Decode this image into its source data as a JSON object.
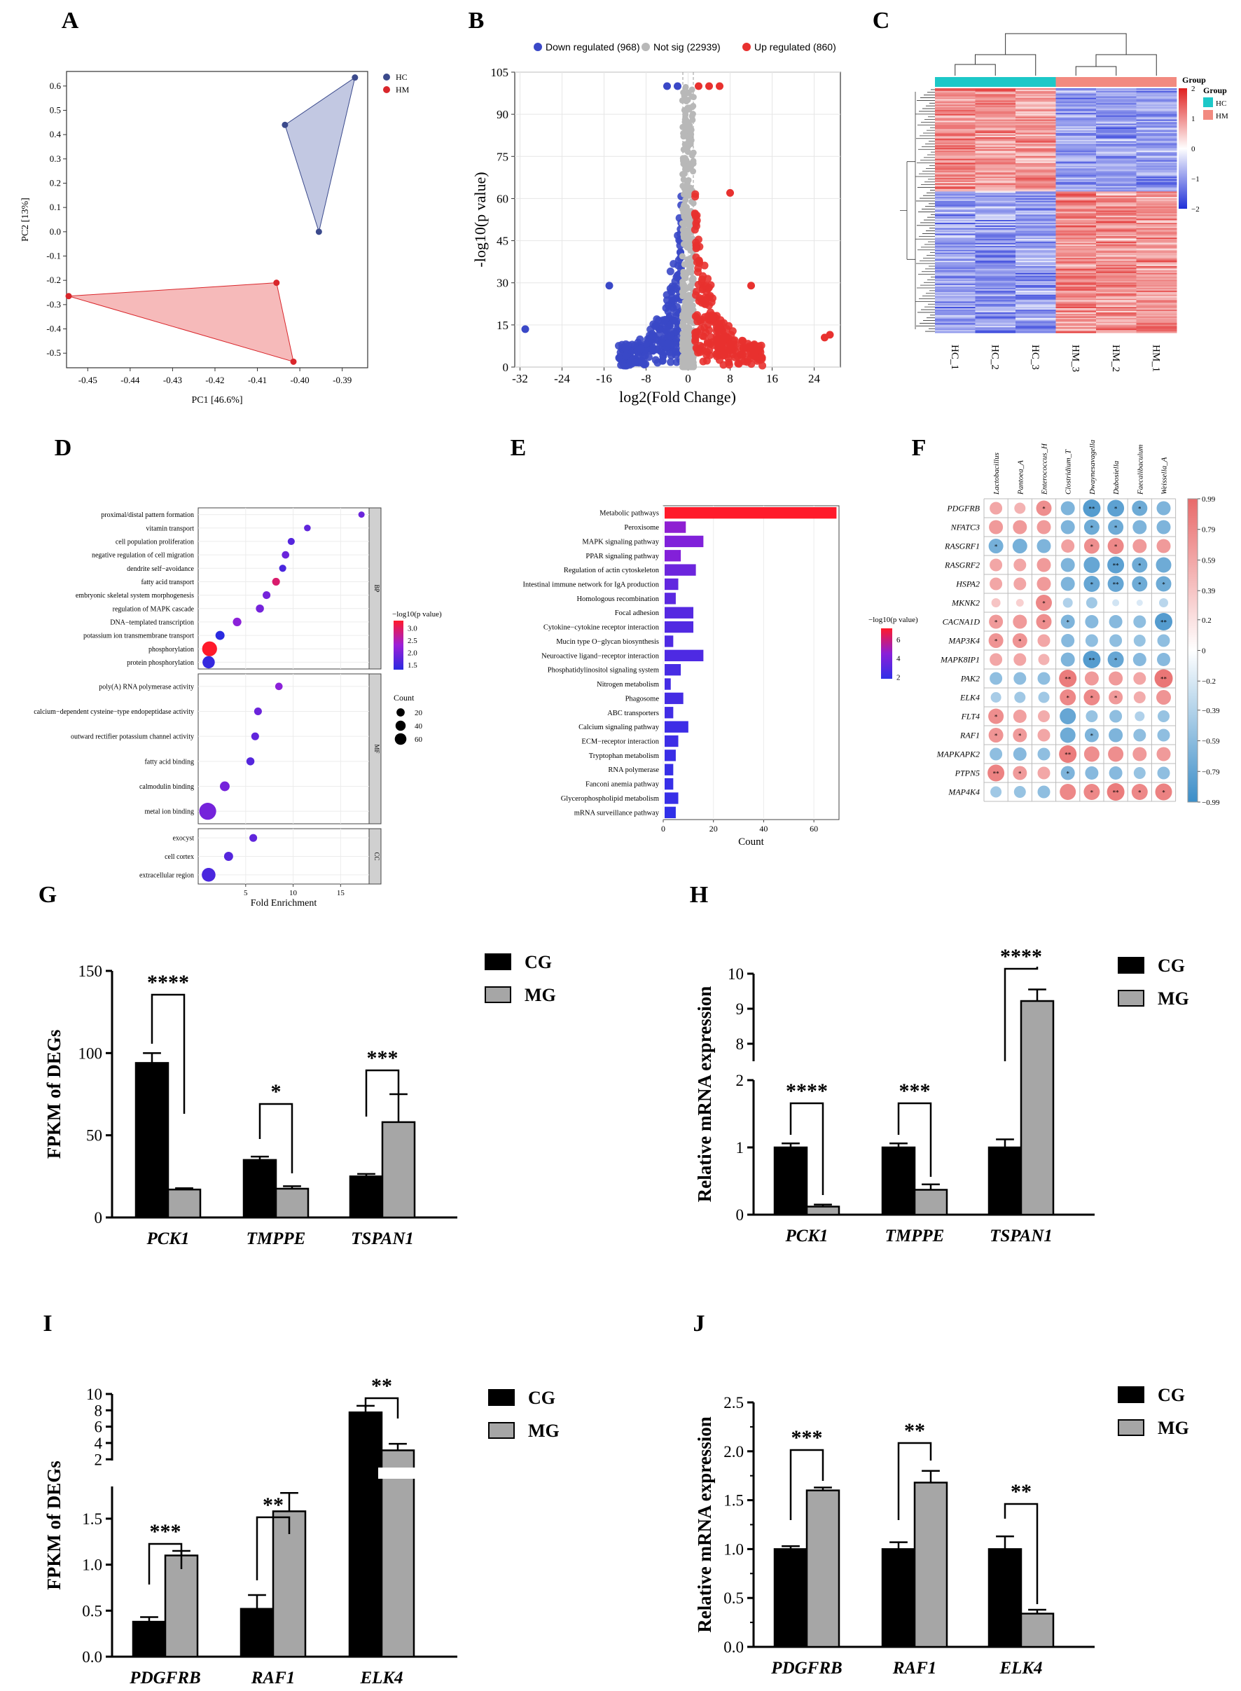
{
  "figure": {
    "panel_letters": [
      "A",
      "B",
      "C",
      "D",
      "E",
      "F",
      "G",
      "H",
      "I",
      "J"
    ]
  },
  "chart_data": [
    {
      "panel": "A",
      "type": "scatter",
      "xlabel": "PC1 [46.6%]",
      "ylabel": "PC2 [13%]",
      "xlim": [
        -0.455,
        -0.384
      ],
      "ylim": [
        -0.56,
        0.66
      ],
      "xticks": [
        "-0.45",
        "-0.44",
        "-0.43",
        "-0.42",
        "-0.41",
        "-0.40",
        "-0.39"
      ],
      "xtick_values": [
        -0.45,
        -0.44,
        -0.43,
        -0.42,
        -0.41,
        -0.4,
        -0.39
      ],
      "yticks": [
        "0.6",
        "0.5",
        "0.4",
        "0.3",
        "0.2",
        "0.1",
        "0.0",
        "-0.1",
        "-0.2",
        "-0.3",
        "-0.4",
        "-0.5"
      ],
      "ytick_values": [
        0.6,
        0.5,
        0.4,
        0.3,
        0.2,
        0.1,
        0.0,
        -0.1,
        -0.2,
        -0.3,
        -0.4,
        -0.5
      ],
      "legend": [
        {
          "name": "HC",
          "color": "#3b4a8c"
        },
        {
          "name": "HM",
          "color": "#d9262b"
        }
      ],
      "series": [
        {
          "name": "HC",
          "color": "#3b4a8c",
          "fill": "#aeb6d8",
          "points": [
            [
              -0.387,
              0.635
            ],
            [
              -0.4035,
              0.44
            ],
            [
              -0.3955,
              0.0
            ]
          ]
        },
        {
          "name": "HM",
          "color": "#d9262b",
          "fill": "#f3a3a3",
          "points": [
            [
              -0.4545,
              -0.265
            ],
            [
              -0.4055,
              -0.21
            ],
            [
              -0.4015,
              -0.535
            ]
          ]
        }
      ]
    },
    {
      "panel": "B",
      "type": "scatter",
      "title": "",
      "xlabel": "log2(Fold Change)",
      "ylabel": "-log10(p value)",
      "xlim": [
        -33,
        29
      ],
      "ylim": [
        0,
        105
      ],
      "xticks": [
        "-32",
        "-24",
        "-16",
        "-8",
        "0",
        "8",
        "16",
        "24"
      ],
      "xtick_values": [
        -32,
        -24,
        -16,
        -8,
        0,
        8,
        16,
        24
      ],
      "yticks": [
        "0",
        "15",
        "30",
        "45",
        "60",
        "75",
        "90",
        "105"
      ],
      "ytick_values": [
        0,
        15,
        30,
        45,
        60,
        75,
        90,
        105
      ],
      "legend": [
        {
          "name": "Down regulated (968)",
          "color": "#3a48c7"
        },
        {
          "name": "Not sig (22939)",
          "color": "#b8b8b8"
        },
        {
          "name": "Up regulated (860)",
          "color": "#e8312f"
        }
      ],
      "series_counts": {
        "down": 968,
        "not_sig": 22939,
        "up": 860
      }
    },
    {
      "panel": "C",
      "type": "heatmap",
      "columns": [
        "HC_1",
        "HC_2",
        "HC_3",
        "HM_3",
        "HM_2",
        "HM_1"
      ],
      "groups": [
        {
          "name": "HC",
          "color": "#1dc8c8"
        },
        {
          "name": "HM",
          "color": "#f28a80"
        }
      ],
      "legend_title": "Group",
      "scale_ticks": [
        "2",
        "1",
        "0",
        "−1",
        "−2"
      ],
      "scale_values": [
        2,
        1,
        0,
        -1,
        -2
      ],
      "scale_colors": [
        "#e0201f",
        "#ffffff",
        "#1f2fd8"
      ]
    },
    {
      "panel": "D",
      "type": "scatter",
      "xlabel": "Fold Enrichment",
      "xlim": [
        0,
        18
      ],
      "xticks": [
        "5",
        "10",
        "15"
      ],
      "xtick_values": [
        5,
        10,
        15
      ],
      "colorbar_title": "−log10(p value)",
      "colorbar_ticks": [
        "3.0",
        "2.5",
        "2.0",
        "1.5"
      ],
      "colorbar_values": [
        3.0,
        2.5,
        2.0,
        1.5
      ],
      "size_legend_title": "Count",
      "size_legend": [
        "20",
        "40",
        "60"
      ],
      "size_values": [
        20,
        40,
        60
      ],
      "facets": [
        {
          "name": "BP",
          "terms": [
            {
              "term": "proximal/distal pattern formation",
              "fe": 17.2,
              "logp": 1.9,
              "count": 3
            },
            {
              "term": "vitamin transport",
              "fe": 11.5,
              "logp": 1.8,
              "count": 4
            },
            {
              "term": "cell population proliferation",
              "fe": 9.8,
              "logp": 1.7,
              "count": 5
            },
            {
              "term": "negative regulation of cell migration",
              "fe": 9.2,
              "logp": 1.9,
              "count": 6
            },
            {
              "term": "dendrite self−avoidance",
              "fe": 8.9,
              "logp": 1.6,
              "count": 5
            },
            {
              "term": "fatty acid transport",
              "fe": 8.2,
              "logp": 3.0,
              "count": 7
            },
            {
              "term": "embryonic skeletal system morphogenesis",
              "fe": 7.2,
              "logp": 2.0,
              "count": 7
            },
            {
              "term": "regulation of MAPK cascade",
              "fe": 6.5,
              "logp": 2.0,
              "count": 8
            },
            {
              "term": "DNA−templated transcription",
              "fe": 4.1,
              "logp": 2.2,
              "count": 10
            },
            {
              "term": "potassium ion transmembrane transport",
              "fe": 2.3,
              "logp": 1.3,
              "count": 12
            },
            {
              "term": "phosphorylation",
              "fe": 1.2,
              "logp": 3.4,
              "count": 50
            },
            {
              "term": "protein phosphorylation",
              "fe": 1.1,
              "logp": 1.4,
              "count": 30
            }
          ]
        },
        {
          "name": "MF",
          "terms": [
            {
              "term": "poly(A) RNA polymerase activity",
              "fe": 8.5,
              "logp": 2.2,
              "count": 6
            },
            {
              "term": "calcium−dependent cysteine−type endopeptidase activity",
              "fe": 6.3,
              "logp": 1.9,
              "count": 7
            },
            {
              "term": "outward rectifier potassium channel activity",
              "fe": 6.0,
              "logp": 1.8,
              "count": 7
            },
            {
              "term": "fatty acid binding",
              "fe": 5.5,
              "logp": 1.7,
              "count": 8
            },
            {
              "term": "calmodulin binding",
              "fe": 2.8,
              "logp": 2.0,
              "count": 15
            },
            {
              "term": "metal ion binding",
              "fe": 1.0,
              "logp": 2.0,
              "count": 70
            }
          ]
        },
        {
          "name": "CC",
          "terms": [
            {
              "term": "exocyst",
              "fe": 5.8,
              "logp": 1.8,
              "count": 7
            },
            {
              "term": "cell cortex",
              "fe": 3.2,
              "logp": 1.7,
              "count": 12
            },
            {
              "term": "extracellular region",
              "fe": 1.1,
              "logp": 1.6,
              "count": 40
            }
          ]
        }
      ]
    },
    {
      "panel": "E",
      "type": "bar",
      "orientation": "horizontal",
      "xlabel": "Count",
      "xlim": [
        0,
        70
      ],
      "xticks": [
        "0",
        "20",
        "40",
        "60"
      ],
      "xtick_values": [
        0,
        20,
        40,
        60
      ],
      "colorbar_title": "−log10(p value)",
      "colorbar_ticks": [
        "6",
        "4",
        "2"
      ],
      "colorbar_values": [
        6,
        4,
        2
      ],
      "categories": [
        "Metabolic pathways",
        "Peroxisome",
        "MAPK signaling pathway",
        "PPAR signaling pathway",
        "Regulation of actin cytoskeleton",
        "Intestinal immune network for IgA production",
        "Homologous recombination",
        "Focal adhesion",
        "Cytokine−cytokine receptor interaction",
        "Mucin type O−glycan biosynthesis",
        "Neuroactive ligand−receptor interaction",
        "Phosphatidylinositol signaling system",
        "Nitrogen metabolism",
        "Phagosome",
        "ABC transporters",
        "Calcium signaling pathway",
        "ECM−receptor interaction",
        "Tryptophan metabolism",
        "RNA polymerase",
        "Fanconi anemia pathway",
        "Glycerophospholipid metabolism",
        "mRNA surveillance pathway"
      ],
      "values": [
        69,
        9,
        16,
        7,
        13,
        6,
        5,
        12,
        12,
        4,
        16,
        7,
        3,
        8,
        4,
        10,
        6,
        5,
        4,
        4,
        6,
        5
      ],
      "logp": [
        7.2,
        4.6,
        4.2,
        4.3,
        3.6,
        3.3,
        3.1,
        2.9,
        2.8,
        2.7,
        2.7,
        2.5,
        2.4,
        2.4,
        2.3,
        2.2,
        2.2,
        2.1,
        2.0,
        2.0,
        2.0,
        1.8
      ]
    },
    {
      "panel": "F",
      "type": "heatmap",
      "columns": [
        "Lactobacillus",
        "Pantoea_A",
        "Enterococcus_H",
        "Clostridium_T",
        "Dwaynesavagella",
        "Dubosiella",
        "Faecalibaculum",
        "Weissella_A"
      ],
      "rows": [
        "PDGFRB",
        "NFATC3",
        "RASGRF1",
        "RASGRF2",
        "HSPA2",
        "MKNK2",
        "CACNA1D",
        "MAP3K4",
        "MAPK8IP1",
        "PAK2",
        "ELK4",
        "FLT4",
        "RAF1",
        "MAPKAPK2",
        "PTPN5",
        "MAP4K4"
      ],
      "values": [
        [
          0.5,
          0.4,
          0.7,
          -0.6,
          -0.85,
          -0.8,
          -0.7,
          -0.6
        ],
        [
          0.6,
          0.6,
          0.6,
          -0.6,
          -0.7,
          -0.7,
          -0.6,
          -0.6
        ],
        [
          -0.65,
          -0.65,
          -0.6,
          0.55,
          0.7,
          0.75,
          0.6,
          0.6
        ],
        [
          0.5,
          0.5,
          0.6,
          -0.6,
          -0.75,
          -0.8,
          -0.7,
          -0.7
        ],
        [
          0.5,
          0.5,
          0.6,
          -0.6,
          -0.75,
          -0.75,
          -0.7,
          -0.7
        ],
        [
          0.25,
          0.15,
          0.75,
          -0.3,
          -0.4,
          -0.1,
          -0.05,
          -0.25
        ],
        [
          0.6,
          0.6,
          0.7,
          -0.6,
          -0.55,
          -0.55,
          -0.5,
          -0.85
        ],
        [
          0.65,
          0.65,
          0.5,
          -0.55,
          -0.5,
          -0.5,
          -0.45,
          -0.5
        ],
        [
          0.5,
          0.5,
          0.4,
          -0.6,
          -0.85,
          -0.75,
          -0.55,
          -0.55
        ],
        [
          -0.5,
          -0.5,
          -0.5,
          0.85,
          0.6,
          0.6,
          0.5,
          0.9
        ],
        [
          -0.35,
          -0.4,
          -0.4,
          0.75,
          0.75,
          0.6,
          0.45,
          0.65
        ],
        [
          0.7,
          0.55,
          0.45,
          -0.75,
          -0.45,
          -0.5,
          -0.3,
          -0.45
        ],
        [
          0.65,
          0.6,
          0.5,
          -0.7,
          -0.6,
          -0.6,
          -0.5,
          -0.5
        ],
        [
          -0.5,
          -0.55,
          -0.5,
          0.85,
          0.7,
          0.7,
          0.6,
          0.6
        ],
        [
          0.8,
          0.6,
          0.5,
          -0.6,
          -0.55,
          -0.55,
          -0.45,
          -0.5
        ],
        [
          -0.4,
          -0.45,
          -0.5,
          0.75,
          0.75,
          0.85,
          0.75,
          0.8
        ]
      ],
      "stars": [
        [
          "",
          "",
          "*",
          "",
          "**",
          "*",
          "*",
          ""
        ],
        [
          "",
          "",
          "",
          "",
          "*",
          "*",
          "",
          ""
        ],
        [
          "*",
          "",
          "",
          "",
          "*",
          "*",
          "",
          ""
        ],
        [
          "",
          "",
          "",
          "",
          "",
          "**",
          "*",
          ""
        ],
        [
          "",
          "",
          "",
          "",
          "*",
          "**",
          "*",
          "*"
        ],
        [
          "",
          "",
          "*",
          "",
          "",
          "",
          "",
          ""
        ],
        [
          "*",
          "",
          "*",
          "*",
          "",
          "",
          "",
          "**"
        ],
        [
          "*",
          "*",
          "",
          "",
          "",
          "",
          "",
          ""
        ],
        [
          "",
          "",
          "",
          "",
          "**",
          "*",
          "",
          ""
        ],
        [
          "",
          "",
          "",
          "**",
          "",
          "",
          "",
          "**"
        ],
        [
          "",
          "",
          "",
          "*",
          "*",
          "*",
          "",
          ""
        ],
        [
          "*",
          "",
          "",
          "",
          "",
          "",
          "",
          ""
        ],
        [
          "*",
          "*",
          "",
          "",
          "*",
          "",
          "",
          ""
        ],
        [
          "",
          "",
          "",
          "**",
          "",
          "",
          "",
          ""
        ],
        [
          "**",
          "*",
          "",
          "*",
          "",
          "",
          "",
          ""
        ],
        [
          "",
          "",
          "",
          "",
          "*",
          "**",
          "*",
          "*"
        ]
      ],
      "scale_ticks": [
        "0.99",
        "0.79",
        "0.59",
        "0.39",
        "0.2",
        "0",
        "−0.2",
        "−0.39",
        "−0.59",
        "−0.79",
        "−0.99"
      ],
      "scale_values": [
        0.99,
        0.79,
        0.59,
        0.39,
        0.2,
        0,
        -0.2,
        -0.39,
        -0.59,
        -0.79,
        -0.99
      ]
    },
    {
      "panel": "G",
      "type": "bar",
      "ylabel": "FPKM of DEGs",
      "ylim": [
        0,
        150
      ],
      "yticks": [
        "0",
        "50",
        "100",
        "150"
      ],
      "ytick_values": [
        0,
        50,
        100,
        150
      ],
      "categories": [
        "PCK1",
        "TMPPE",
        "TSPAN1"
      ],
      "series": [
        {
          "name": "CG",
          "values": [
            94,
            35,
            25
          ],
          "errors": [
            6,
            2,
            1.5
          ]
        },
        {
          "name": "MG",
          "values": [
            17,
            17.5,
            58
          ],
          "errors": [
            0.8,
            1.5,
            17
          ]
        }
      ],
      "significance": [
        "****",
        "*",
        "***"
      ]
    },
    {
      "panel": "H",
      "type": "bar",
      "ylabel": "Relative mRNA expression",
      "axis_break": {
        "lower": [
          0,
          2
        ],
        "upper": [
          7.5,
          10
        ]
      },
      "yticks": [
        "0",
        "1",
        "2",
        "8",
        "9",
        "10"
      ],
      "ytick_values": [
        0,
        1,
        2,
        8,
        9,
        10
      ],
      "categories": [
        "PCK1",
        "TMPPE",
        "TSPAN1"
      ],
      "series": [
        {
          "name": "CG",
          "values": [
            1.0,
            1.0,
            1.0
          ],
          "errors": [
            0.06,
            0.06,
            0.12
          ]
        },
        {
          "name": "MG",
          "values": [
            0.12,
            0.37,
            9.22
          ],
          "errors": [
            0.03,
            0.08,
            0.33
          ]
        }
      ],
      "significance": [
        "****",
        "***",
        "****"
      ]
    },
    {
      "panel": "I",
      "type": "bar",
      "ylabel": "FPKM of DEGs",
      "axis_break": {
        "lower": [
          0,
          1.85
        ],
        "upper": [
          1.85,
          10
        ]
      },
      "yticks": [
        "0.0",
        "0.5",
        "1.0",
        "1.5",
        "2",
        "4",
        "6",
        "8",
        "10"
      ],
      "ytick_values": [
        0,
        0.5,
        1.0,
        1.5,
        2,
        4,
        6,
        8,
        10
      ],
      "categories": [
        "PDGFRB",
        "RAF1",
        "ELK4"
      ],
      "series": [
        {
          "name": "CG",
          "values": [
            0.38,
            0.52,
            7.75
          ],
          "errors": [
            0.05,
            0.15,
            0.8
          ]
        },
        {
          "name": "MG",
          "values": [
            1.1,
            1.58,
            3.1
          ],
          "errors": [
            0.05,
            0.2,
            0.8
          ]
        }
      ],
      "significance": [
        "***",
        "**",
        "**"
      ]
    },
    {
      "panel": "J",
      "type": "bar",
      "ylabel": "Relative mRNA expression",
      "ylim": [
        0,
        2.5
      ],
      "yticks": [
        "0.0",
        "0.5",
        "1.0",
        "1.5",
        "2.0",
        "2.5"
      ],
      "ytick_values": [
        0,
        0.5,
        1.0,
        1.5,
        2.0,
        2.5
      ],
      "categories": [
        "PDGFRB",
        "RAF1",
        "ELK4"
      ],
      "series": [
        {
          "name": "CG",
          "values": [
            1.0,
            1.0,
            1.0
          ],
          "errors": [
            0.03,
            0.07,
            0.13
          ]
        },
        {
          "name": "MG",
          "values": [
            1.6,
            1.68,
            0.34
          ],
          "errors": [
            0.03,
            0.12,
            0.04
          ]
        }
      ],
      "significance": [
        "***",
        "**",
        "**"
      ]
    }
  ]
}
